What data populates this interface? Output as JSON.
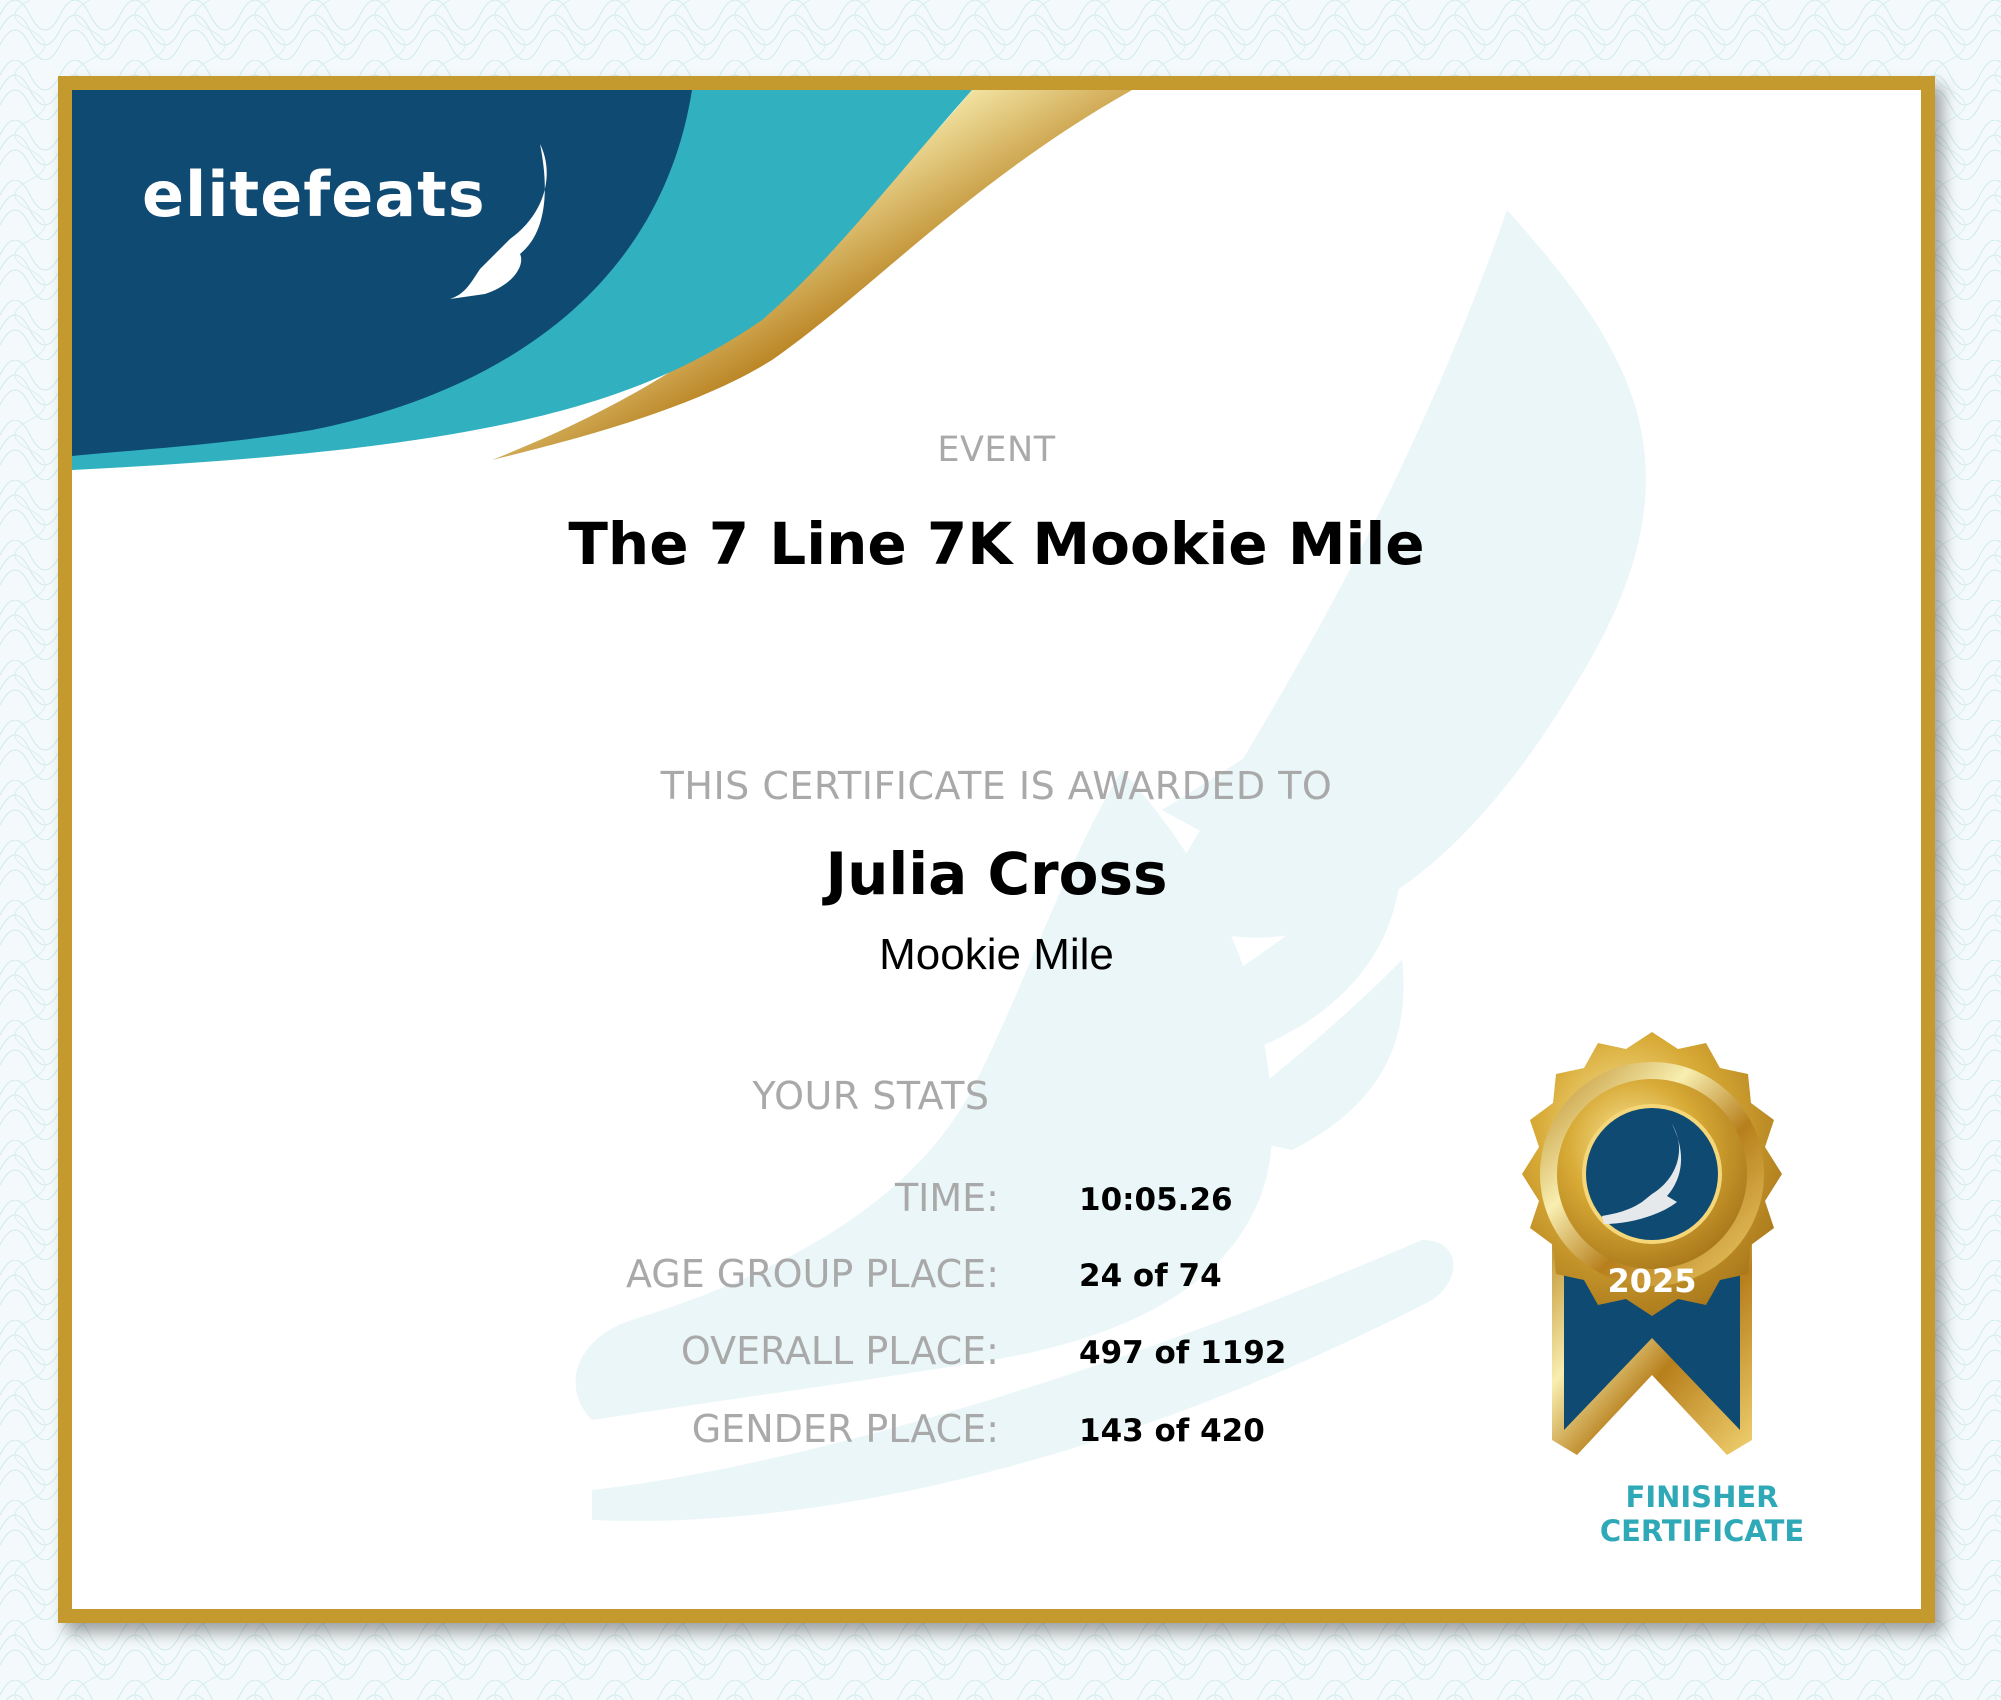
{
  "brand": {
    "logo_text": "elitefeats",
    "colors": {
      "navy": "#0f4a73",
      "teal": "#31b0c0",
      "gold": "#c49a2e"
    }
  },
  "event": {
    "label": "EVENT",
    "name": "The 7 Line 7K Mookie Mile"
  },
  "award": {
    "label": "THIS CERTIFICATE IS AWARDED TO",
    "recipient": "Julia Cross",
    "race": "Mookie Mile"
  },
  "stats": {
    "label": "YOUR STATS",
    "rows": [
      {
        "key": "TIME:",
        "value": "10:05.26"
      },
      {
        "key": "AGE GROUP PLACE:",
        "value": "24 of 74"
      },
      {
        "key": "OVERALL PLACE:",
        "value": "497 of 1192"
      },
      {
        "key": "GENDER PLACE:",
        "value": "143 of 420"
      }
    ]
  },
  "badge": {
    "year": "2025",
    "line1": "FINISHER",
    "line2": "CERTIFICATE",
    "icon": "winged-shoe-icon"
  }
}
